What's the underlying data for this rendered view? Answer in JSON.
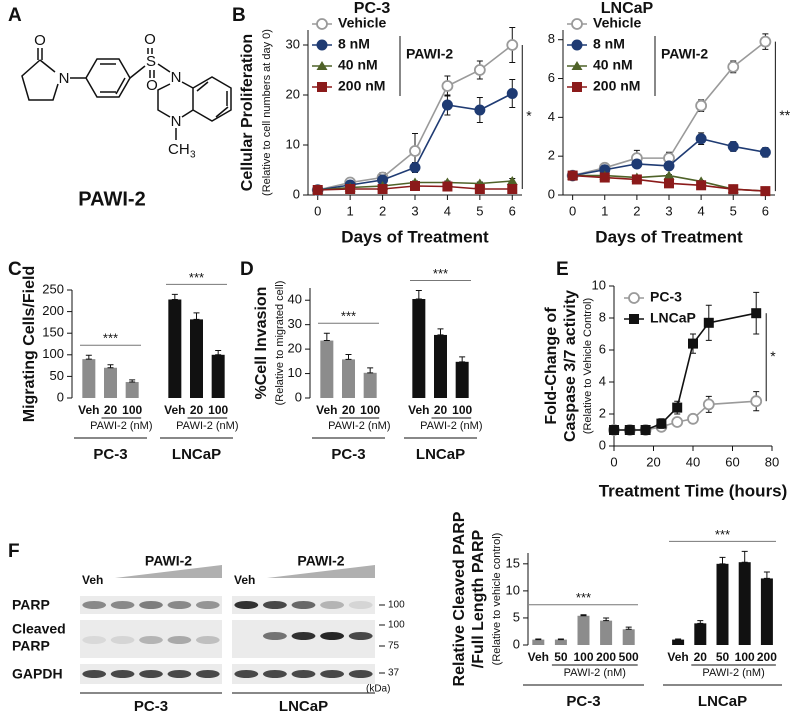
{
  "panels": [
    "A",
    "B",
    "C",
    "D",
    "E",
    "F"
  ],
  "structure": {
    "name": "PAWI-2",
    "atoms": [
      "O",
      "N",
      "O",
      "S",
      "O",
      "N",
      "N",
      "CH"
    ],
    "subscript": "3"
  },
  "blot": {
    "rows": [
      [
        "PARP"
      ],
      [
        "Cleaved",
        "PARP"
      ],
      [
        "GAPDH"
      ]
    ],
    "markers": [
      "100",
      "100",
      "75",
      "37"
    ],
    "unit": "(kDa)",
    "panels": [
      {
        "control": "Veh",
        "treatment": "PAWI-2",
        "cell": "PC-3"
      },
      {
        "control": "Veh",
        "treatment": "PAWI-2",
        "cell": "LNCaP"
      }
    ]
  },
  "chart_data": [
    {
      "type": "line",
      "title": "PC-3",
      "x": [
        0,
        1,
        2,
        3,
        4,
        5,
        6
      ],
      "xlim": [
        -0.3,
        6.3
      ],
      "xticks": [
        0,
        1,
        2,
        3,
        4,
        5,
        6
      ],
      "ylim": [
        0,
        33
      ],
      "yticks": [
        0,
        10,
        20,
        30
      ],
      "xlabel": "Days of Treatment",
      "ylabel": "Cellular Proliferation",
      "ysublabel": "(Relative to cell numbers at day 0)",
      "legend": "upper left",
      "legend_note": "PAWI-2",
      "annotation": "*",
      "series": [
        {
          "name": "Vehicle",
          "color": "#9a9a9a",
          "marker": "open-circle",
          "values": [
            1,
            2.5,
            3.5,
            8.8,
            21.8,
            25,
            30
          ],
          "errors": [
            0.2,
            0.5,
            1,
            3.5,
            2,
            1.8,
            3.5
          ]
        },
        {
          "name": "8 nM",
          "color": "#1f3b73",
          "marker": "circle",
          "values": [
            1,
            2,
            3,
            5.5,
            18,
            17,
            20.3
          ],
          "errors": [
            0.2,
            0.5,
            1,
            1,
            2,
            2.5,
            2.8
          ]
        },
        {
          "name": "40 nM",
          "color": "#4f6228",
          "marker": "triangle",
          "values": [
            1,
            1.5,
            1.8,
            2.5,
            2.5,
            2.3,
            2.8
          ],
          "errors": [
            0.1,
            0.2,
            0.2,
            0.3,
            0.3,
            0.3,
            0.5
          ]
        },
        {
          "name": "200 nM",
          "color": "#8b1a1a",
          "marker": "square",
          "values": [
            1,
            1.2,
            1.2,
            1.8,
            1.7,
            1.2,
            1.2
          ],
          "errors": [
            0.1,
            0.2,
            0.2,
            0.3,
            0.3,
            0.2,
            0.2
          ]
        }
      ]
    },
    {
      "type": "line",
      "title": "LNCaP",
      "x": [
        0,
        1,
        2,
        3,
        4,
        5,
        6
      ],
      "xlim": [
        -0.3,
        6.3
      ],
      "xticks": [
        0,
        1,
        2,
        3,
        4,
        5,
        6
      ],
      "ylim": [
        0,
        8.5
      ],
      "yticks": [
        0,
        2,
        4,
        6,
        8
      ],
      "xlabel": "Days of Treatment",
      "legend": "upper left",
      "legend_note": "PAWI-2",
      "annotation": "**",
      "series": [
        {
          "name": "Vehicle",
          "color": "#9a9a9a",
          "marker": "open-circle",
          "values": [
            1,
            1.4,
            1.9,
            1.9,
            4.6,
            6.6,
            7.9
          ],
          "errors": [
            0.05,
            0.15,
            0.4,
            0.3,
            0.3,
            0.3,
            0.4
          ]
        },
        {
          "name": "8 nM",
          "color": "#1f3b73",
          "marker": "circle",
          "values": [
            1,
            1.3,
            1.6,
            1.5,
            2.9,
            2.5,
            2.2
          ],
          "errors": [
            0.05,
            0.1,
            0.1,
            0.15,
            0.3,
            0.25,
            0.25
          ]
        },
        {
          "name": "40 nM",
          "color": "#4f6228",
          "marker": "triangle",
          "values": [
            1,
            1,
            0.9,
            1,
            0.7,
            0.3,
            0.2
          ],
          "errors": [
            0.05,
            0.05,
            0.05,
            0.05,
            0.05,
            0.05,
            0.05
          ]
        },
        {
          "name": "200 nM",
          "color": "#8b1a1a",
          "marker": "square",
          "values": [
            1,
            0.9,
            0.8,
            0.6,
            0.5,
            0.3,
            0.2
          ],
          "errors": [
            0.05,
            0.05,
            0.05,
            0.05,
            0.05,
            0.05,
            0.05
          ]
        }
      ]
    },
    {
      "type": "bar",
      "ylabel": "Migrating Cells/Field",
      "ylim": [
        0,
        250
      ],
      "yticks": [
        0,
        50,
        100,
        150,
        200,
        250
      ],
      "groups": [
        {
          "name": "PC-3",
          "color": "#8c8c8c",
          "categories": [
            "Veh",
            "20",
            "100"
          ],
          "values": [
            90,
            70,
            37
          ],
          "errors": [
            9,
            7,
            5
          ],
          "xlabel": "PAWI-2 (nM)",
          "annotation": "***"
        },
        {
          "name": "LNCaP",
          "color": "#111111",
          "categories": [
            "Veh",
            "20",
            "100"
          ],
          "values": [
            228,
            182,
            100
          ],
          "errors": [
            12,
            15,
            10
          ],
          "xlabel": "PAWI-2 (nM)",
          "annotation": "***"
        }
      ]
    },
    {
      "type": "bar",
      "ylabel": "%Cell Invasion",
      "ysublabel": "(Relative to migrated cell)",
      "ylim": [
        0,
        45
      ],
      "yticks": [
        0,
        10,
        20,
        30,
        40
      ],
      "groups": [
        {
          "name": "PC-3",
          "color": "#8c8c8c",
          "categories": [
            "Veh",
            "20",
            "100"
          ],
          "values": [
            23.5,
            15.8,
            10.3
          ],
          "errors": [
            3,
            2,
            2
          ],
          "xlabel": "PAWI-2 (nM)",
          "annotation": "***"
        },
        {
          "name": "LNCaP",
          "color": "#111111",
          "categories": [
            "Veh",
            "20",
            "100"
          ],
          "values": [
            40.5,
            25.8,
            14.8
          ],
          "errors": [
            3.5,
            2.5,
            2
          ],
          "xlabel": "PAWI-2 (nM)",
          "annotation": "***"
        }
      ]
    },
    {
      "type": "line",
      "x": [
        0,
        8,
        16,
        24,
        32,
        40,
        48,
        72
      ],
      "xlim": [
        0,
        80
      ],
      "xticks": [
        0,
        20,
        40,
        60,
        80
      ],
      "ylim": [
        0,
        10
      ],
      "yticks": [
        0,
        2,
        4,
        6,
        8,
        10
      ],
      "xlabel": "Treatment Time (hours)",
      "ylabel": [
        "Fold-Change of",
        "Caspase 3/7 activity"
      ],
      "ysublabel": "(Relative to Vehicle Control)",
      "legend": "upper left",
      "annotation": "*",
      "series": [
        {
          "name": "PC-3",
          "color": "#9a9a9a",
          "marker": "open-circle",
          "values": [
            1,
            1,
            1,
            1.2,
            1.5,
            1.7,
            2.6,
            2.8
          ],
          "errors": [
            0.1,
            0.1,
            0.1,
            0.2,
            0.2,
            0.2,
            0.5,
            0.6
          ]
        },
        {
          "name": "LNCaP",
          "color": "#111111",
          "marker": "square",
          "values": [
            1,
            1,
            1,
            1.4,
            2.4,
            6.4,
            7.7,
            8.3
          ],
          "errors": [
            0.1,
            0.1,
            0.1,
            0.3,
            0.4,
            0.6,
            1.1,
            1.3
          ]
        }
      ]
    },
    {
      "type": "bar",
      "ylabel": [
        "Relative Cleaved PARP",
        "/Full Length PARP"
      ],
      "ysublabel": "(Relative to vehicle control)",
      "ylim": [
        0,
        17
      ],
      "yticks": [
        0,
        5,
        10,
        15
      ],
      "groups": [
        {
          "name": "PC-3",
          "color": "#8c8c8c",
          "categories": [
            "Veh",
            "50",
            "100",
            "200",
            "500"
          ],
          "values": [
            1,
            1,
            5.4,
            4.5,
            2.9
          ],
          "errors": [
            0.1,
            0.1,
            0.2,
            0.5,
            0.4
          ],
          "xlabel": "PAWI-2 (nM)",
          "annotation": "***"
        },
        {
          "name": "LNCaP",
          "color": "#111111",
          "categories": [
            "Veh",
            "20",
            "50",
            "100",
            "200"
          ],
          "values": [
            1,
            4,
            15,
            15.3,
            12.3
          ],
          "errors": [
            0.1,
            0.5,
            1.2,
            2,
            1.2
          ],
          "xlabel": "PAWI-2 (nM)",
          "annotation": "***"
        }
      ]
    }
  ]
}
